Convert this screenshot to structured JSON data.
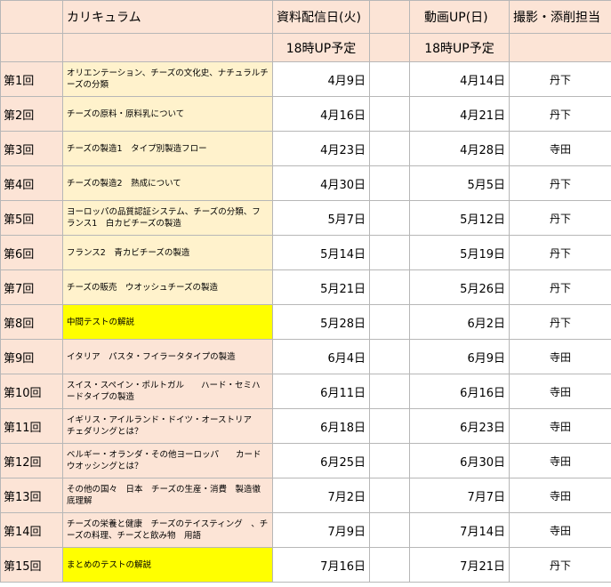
{
  "header": {
    "curriculum": "カリキュラム",
    "delivery": "資料配信日(火)",
    "video": "動画UP(日)",
    "staff": "撮影・添削担当"
  },
  "subheader": {
    "delivery": "18時UP予定",
    "video": "18時UP予定"
  },
  "rows": [
    {
      "no": "第1回",
      "title": "オリエンテーション、チーズの文化史、ナチュラルチーズの分類",
      "delivery": "4月9日",
      "video": "4月14日",
      "staff": "丹下"
    },
    {
      "no": "第2回",
      "title": "チーズの原料・原料乳について",
      "delivery": "4月16日",
      "video": "4月21日",
      "staff": "丹下"
    },
    {
      "no": "第3回",
      "title": "チーズの製造1　タイプ別製造フロー",
      "delivery": "4月23日",
      "video": "4月28日",
      "staff": "寺田"
    },
    {
      "no": "第4回",
      "title": "チーズの製造2　熟成について",
      "delivery": "4月30日",
      "video": "5月5日",
      "staff": "丹下"
    },
    {
      "no": "第5回",
      "title": "ヨーロッパの品質認証システム、チーズの分類、フランス1　白カビチーズの製造",
      "delivery": "5月7日",
      "video": "5月12日",
      "staff": "丹下"
    },
    {
      "no": "第6回",
      "title": "フランス2　青カビチーズの製造",
      "delivery": "5月14日",
      "video": "5月19日",
      "staff": "丹下"
    },
    {
      "no": "第7回",
      "title": "チーズの販売　ウオッシュチーズの製造",
      "delivery": "5月21日",
      "video": "5月26日",
      "staff": "丹下"
    },
    {
      "no": "第8回",
      "title": "中間テストの解説",
      "delivery": "5月28日",
      "video": "6月2日",
      "staff": "丹下"
    },
    {
      "no": "第9回",
      "title": "イタリア　パスタ・フイラータタイプの製造",
      "delivery": "6月4日",
      "video": "6月9日",
      "staff": "寺田"
    },
    {
      "no": "第10回",
      "title": "スイス・スペイン・ポルトガル　　ハード・セミハードタイプの製造",
      "delivery": "6月11日",
      "video": "6月16日",
      "staff": "寺田"
    },
    {
      "no": "第11回",
      "title": "イギリス・アイルランド・ドイツ・オーストリア　 チェダリングとは？",
      "delivery": "6月18日",
      "video": "6月23日",
      "staff": "寺田"
    },
    {
      "no": "第12回",
      "title": "ベルギー・オランダ・その他ヨーロッパ　　カードウオッシングとは？",
      "delivery": "6月25日",
      "video": "6月30日",
      "staff": "寺田"
    },
    {
      "no": "第13回",
      "title": "その他の国々　日本　チーズの生産・消費　製造徹底理解",
      "delivery": "7月2日",
      "video": "7月7日",
      "staff": "寺田"
    },
    {
      "no": "第14回",
      "title": "チーズの栄養と健康　チーズのテイスティング　、チーズの料理、チーズと飲み物　用語",
      "delivery": "7月9日",
      "video": "7月14日",
      "staff": "寺田"
    },
    {
      "no": "第15回",
      "title": "まとめのテストの解説",
      "delivery": "7月16日",
      "video": "7月21日",
      "staff": "丹下"
    }
  ]
}
